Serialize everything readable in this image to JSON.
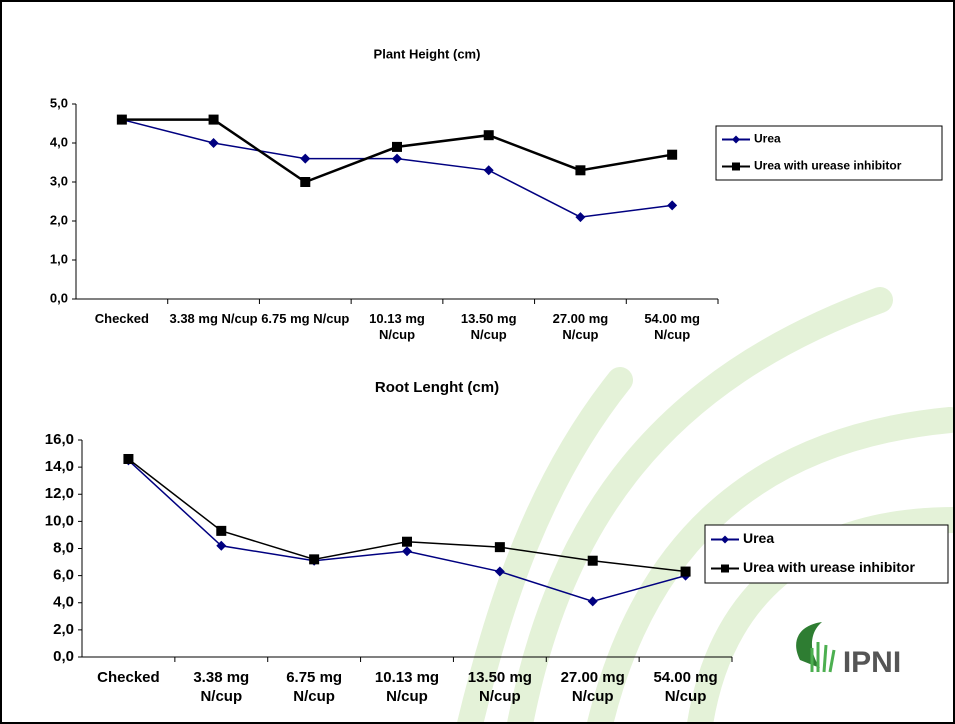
{
  "chart_data": [
    {
      "type": "line",
      "title": "Plant Height (cm)",
      "categories": [
        "Checked",
        "3.38 mg N/cup",
        "6.75 mg N/cup",
        "10.13 mg N/cup",
        "13.50 mg N/cup",
        "27.00 mg N/cup",
        "54.00 mg N/cup"
      ],
      "series": [
        {
          "name": "Urea",
          "color": "#000080",
          "marker": "diamond",
          "values": [
            4.6,
            4.0,
            3.6,
            3.6,
            3.3,
            2.1,
            2.4
          ]
        },
        {
          "name": "Urea with urease inhibitor",
          "color": "#000000",
          "marker": "square",
          "values": [
            4.6,
            4.6,
            3.0,
            3.9,
            4.2,
            3.3,
            3.7
          ]
        }
      ],
      "ylim": [
        0,
        5
      ],
      "yticks": [
        {
          "value": 0,
          "label": "0,0"
        },
        {
          "value": 1,
          "label": "1,0"
        },
        {
          "value": 2,
          "label": "2,0"
        },
        {
          "value": 3,
          "label": "3,0"
        },
        {
          "value": 4,
          "label": "4,0"
        },
        {
          "value": 5,
          "label": "5,0"
        }
      ],
      "grid": false,
      "legend": "right"
    },
    {
      "type": "line",
      "title": "Root Lenght (cm)",
      "categories": [
        "Checked",
        "3.38 mg N/cup",
        "6.75 mg N/cup",
        "10.13 mg N/cup",
        "13.50 mg N/cup",
        "27.00 mg N/cup",
        "54.00 mg N/cup"
      ],
      "series": [
        {
          "name": "Urea",
          "color": "#000080",
          "marker": "diamond",
          "values": [
            14.5,
            8.2,
            7.1,
            7.8,
            6.3,
            4.1,
            6.0
          ]
        },
        {
          "name": "Urea with urease inhibitor",
          "color": "#000000",
          "marker": "square",
          "values": [
            14.6,
            9.3,
            7.2,
            8.5,
            8.1,
            7.1,
            6.3
          ]
        }
      ],
      "ylim": [
        0,
        16
      ],
      "yticks": [
        {
          "value": 0,
          "label": "0,0"
        },
        {
          "value": 2,
          "label": "2,0"
        },
        {
          "value": 4,
          "label": "4,0"
        },
        {
          "value": 6,
          "label": "6,0"
        },
        {
          "value": 8,
          "label": "8,0"
        },
        {
          "value": 10,
          "label": "10,0"
        },
        {
          "value": 12,
          "label": "12,0"
        },
        {
          "value": 14,
          "label": "14,0"
        },
        {
          "value": 16,
          "label": "16,0"
        }
      ],
      "grid": false,
      "legend": "right"
    }
  ],
  "logo": "IPNI"
}
